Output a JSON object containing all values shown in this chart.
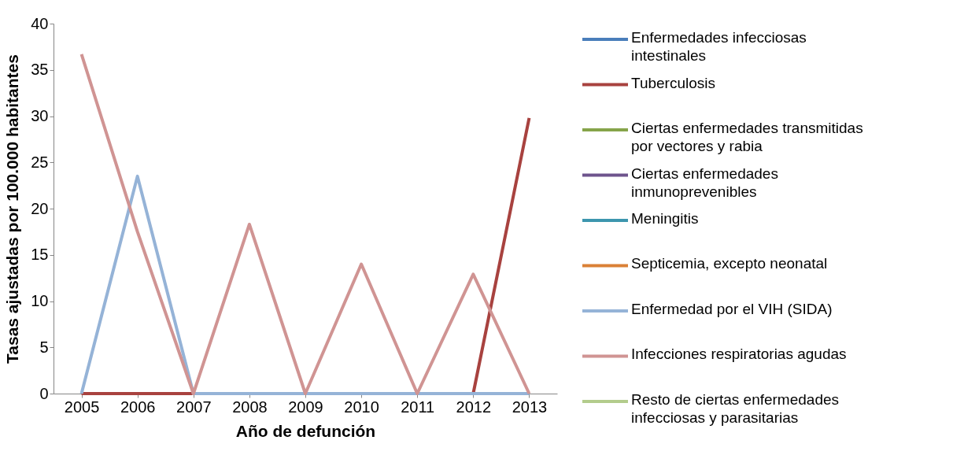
{
  "chart_data": {
    "type": "line",
    "xlabel": "Año de defunción",
    "ylabel": "Tasas ajustadas por 100.000 habitantes",
    "categories": [
      "2005",
      "2006",
      "2007",
      "2008",
      "2009",
      "2010",
      "2011",
      "2012",
      "2013"
    ],
    "ylim": [
      0,
      40
    ],
    "yticks": [
      0,
      5,
      10,
      15,
      20,
      25,
      30,
      35,
      40
    ],
    "grid": false,
    "legend": "right",
    "marker": "none",
    "line_style": "solid",
    "series": [
      {
        "name": "Enfermedades infecciosas intestinales",
        "color": "#4a7ebb",
        "values": [
          null,
          null,
          null,
          null,
          null,
          null,
          null,
          null,
          null
        ]
      },
      {
        "name": "Tuberculosis",
        "color": "#a8423f",
        "values": [
          0,
          0,
          0,
          0,
          0,
          0,
          0,
          0,
          29.8
        ]
      },
      {
        "name": "Ciertas enfermedades transmitidas por vectores y rabia",
        "color": "#86a44a",
        "values": [
          null,
          null,
          null,
          null,
          null,
          null,
          null,
          null,
          null
        ]
      },
      {
        "name": "Ciertas enfermedades inmunoprevenibles",
        "color": "#6e548d",
        "values": [
          null,
          null,
          null,
          null,
          null,
          null,
          null,
          null,
          null
        ]
      },
      {
        "name": "Meningitis",
        "color": "#3d96ae",
        "values": [
          null,
          null,
          null,
          null,
          null,
          null,
          null,
          null,
          null
        ]
      },
      {
        "name": "Septicemia, excepto neonatal",
        "color": "#da8137",
        "values": [
          null,
          null,
          null,
          null,
          null,
          null,
          null,
          null,
          null
        ]
      },
      {
        "name": "Enfermedad por el VIH (SIDA)",
        "color": "#95b3d7",
        "values": [
          0,
          23.5,
          0,
          0,
          0,
          0,
          0,
          0,
          0
        ]
      },
      {
        "name": "Infecciones respiratorias agudas",
        "color": "#d09493",
        "values": [
          36.7,
          17.5,
          0,
          18.3,
          0,
          14.0,
          0,
          12.9,
          0
        ]
      },
      {
        "name": "Resto de ciertas enfermedades infecciosas y parasitarias",
        "color": "#b3cc8c",
        "values": [
          null,
          null,
          null,
          null,
          null,
          null,
          null,
          null,
          null
        ]
      }
    ]
  }
}
